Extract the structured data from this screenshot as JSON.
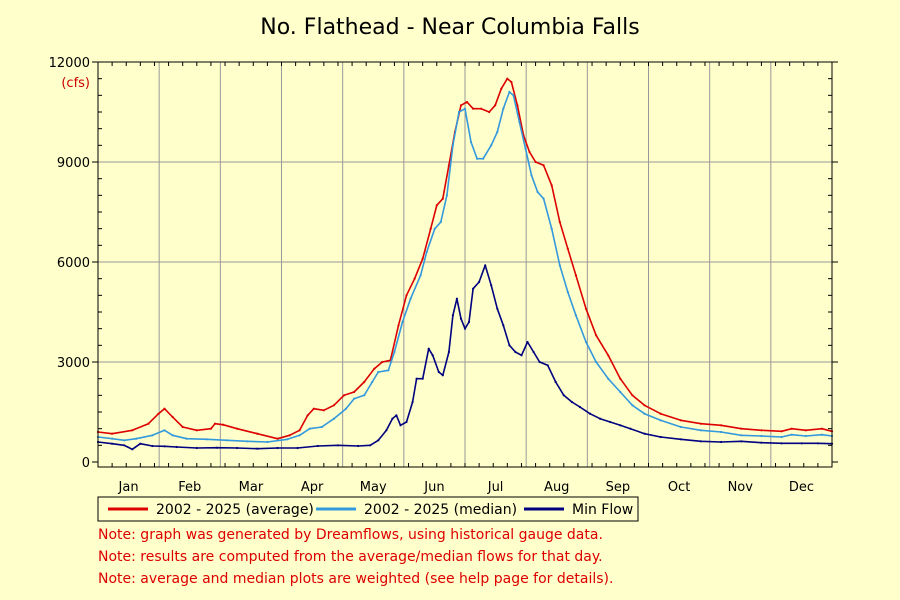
{
  "chart_data": {
    "type": "line",
    "title": "No. Flathead - Near Columbia Falls",
    "unit_label": "(cfs)",
    "ylim": [
      0,
      12000
    ],
    "y_ticks": [
      0,
      3000,
      6000,
      9000,
      12000
    ],
    "months": [
      "Jan",
      "Feb",
      "Mar",
      "Apr",
      "May",
      "Jun",
      "Jul",
      "Aug",
      "Sep",
      "Oct",
      "Nov",
      "Dec"
    ],
    "grid": true,
    "legend_position": "bottom",
    "series": [
      {
        "name": "2002 - 2025 (average)",
        "color": "#dd0000",
        "points": [
          [
            1,
            900
          ],
          [
            8,
            850
          ],
          [
            18,
            950
          ],
          [
            26,
            1150
          ],
          [
            31,
            1450
          ],
          [
            34,
            1600
          ],
          [
            38,
            1350
          ],
          [
            43,
            1050
          ],
          [
            50,
            950
          ],
          [
            57,
            1000
          ],
          [
            59,
            1150
          ],
          [
            63,
            1120
          ],
          [
            70,
            1000
          ],
          [
            80,
            850
          ],
          [
            90,
            700
          ],
          [
            96,
            800
          ],
          [
            101,
            950
          ],
          [
            105,
            1400
          ],
          [
            108,
            1600
          ],
          [
            113,
            1550
          ],
          [
            118,
            1700
          ],
          [
            123,
            2000
          ],
          [
            128,
            2100
          ],
          [
            133,
            2400
          ],
          [
            138,
            2800
          ],
          [
            142,
            3000
          ],
          [
            146,
            3050
          ],
          [
            150,
            4100
          ],
          [
            154,
            5000
          ],
          [
            158,
            5500
          ],
          [
            162,
            6100
          ],
          [
            166,
            7000
          ],
          [
            169,
            7700
          ],
          [
            172,
            7900
          ],
          [
            175,
            8900
          ],
          [
            178,
            9900
          ],
          [
            181,
            10700
          ],
          [
            184,
            10800
          ],
          [
            187,
            10600
          ],
          [
            191,
            10600
          ],
          [
            195,
            10500
          ],
          [
            198,
            10700
          ],
          [
            201,
            11200
          ],
          [
            204,
            11500
          ],
          [
            206,
            11400
          ],
          [
            209,
            10700
          ],
          [
            212,
            9800
          ],
          [
            215,
            9300
          ],
          [
            218,
            9000
          ],
          [
            222,
            8900
          ],
          [
            226,
            8300
          ],
          [
            230,
            7200
          ],
          [
            234,
            6400
          ],
          [
            238,
            5600
          ],
          [
            243,
            4600
          ],
          [
            248,
            3800
          ],
          [
            254,
            3200
          ],
          [
            260,
            2500
          ],
          [
            266,
            2000
          ],
          [
            272,
            1700
          ],
          [
            280,
            1450
          ],
          [
            290,
            1250
          ],
          [
            300,
            1150
          ],
          [
            310,
            1100
          ],
          [
            320,
            1000
          ],
          [
            330,
            950
          ],
          [
            340,
            920
          ],
          [
            345,
            1000
          ],
          [
            352,
            950
          ],
          [
            360,
            1000
          ],
          [
            365,
            920
          ]
        ]
      },
      {
        "name": "2002 - 2025 (median)",
        "color": "#3399dd",
        "points": [
          [
            1,
            750
          ],
          [
            8,
            700
          ],
          [
            14,
            650
          ],
          [
            20,
            700
          ],
          [
            28,
            800
          ],
          [
            34,
            950
          ],
          [
            38,
            800
          ],
          [
            45,
            700
          ],
          [
            55,
            680
          ],
          [
            65,
            650
          ],
          [
            75,
            620
          ],
          [
            85,
            600
          ],
          [
            95,
            680
          ],
          [
            101,
            800
          ],
          [
            106,
            1000
          ],
          [
            112,
            1050
          ],
          [
            118,
            1300
          ],
          [
            124,
            1600
          ],
          [
            128,
            1900
          ],
          [
            133,
            2000
          ],
          [
            137,
            2400
          ],
          [
            140,
            2700
          ],
          [
            145,
            2750
          ],
          [
            148,
            3300
          ],
          [
            152,
            4200
          ],
          [
            156,
            4900
          ],
          [
            161,
            5600
          ],
          [
            164,
            6300
          ],
          [
            168,
            7000
          ],
          [
            171,
            7200
          ],
          [
            174,
            8000
          ],
          [
            177,
            9500
          ],
          [
            180,
            10500
          ],
          [
            183,
            10600
          ],
          [
            186,
            9600
          ],
          [
            189,
            9100
          ],
          [
            192,
            9100
          ],
          [
            196,
            9500
          ],
          [
            199,
            9900
          ],
          [
            202,
            10600
          ],
          [
            205,
            11100
          ],
          [
            207,
            11000
          ],
          [
            210,
            10200
          ],
          [
            213,
            9400
          ],
          [
            216,
            8600
          ],
          [
            219,
            8100
          ],
          [
            222,
            7900
          ],
          [
            226,
            7000
          ],
          [
            230,
            5900
          ],
          [
            234,
            5100
          ],
          [
            238,
            4400
          ],
          [
            243,
            3600
          ],
          [
            248,
            3000
          ],
          [
            254,
            2500
          ],
          [
            260,
            2100
          ],
          [
            266,
            1700
          ],
          [
            272,
            1450
          ],
          [
            280,
            1250
          ],
          [
            290,
            1050
          ],
          [
            300,
            950
          ],
          [
            310,
            900
          ],
          [
            320,
            800
          ],
          [
            330,
            780
          ],
          [
            340,
            750
          ],
          [
            345,
            820
          ],
          [
            352,
            780
          ],
          [
            360,
            820
          ],
          [
            365,
            780
          ]
        ]
      },
      {
        "name": "Min Flow",
        "color": "#000080",
        "points": [
          [
            1,
            600
          ],
          [
            8,
            550
          ],
          [
            14,
            500
          ],
          [
            18,
            380
          ],
          [
            22,
            550
          ],
          [
            28,
            480
          ],
          [
            34,
            470
          ],
          [
            40,
            450
          ],
          [
            50,
            420
          ],
          [
            60,
            430
          ],
          [
            70,
            420
          ],
          [
            80,
            400
          ],
          [
            90,
            420
          ],
          [
            100,
            420
          ],
          [
            110,
            480
          ],
          [
            120,
            500
          ],
          [
            130,
            480
          ],
          [
            136,
            500
          ],
          [
            140,
            650
          ],
          [
            144,
            950
          ],
          [
            147,
            1300
          ],
          [
            149,
            1400
          ],
          [
            151,
            1100
          ],
          [
            154,
            1200
          ],
          [
            157,
            1800
          ],
          [
            159,
            2500
          ],
          [
            162,
            2500
          ],
          [
            165,
            3400
          ],
          [
            167,
            3200
          ],
          [
            170,
            2700
          ],
          [
            172,
            2600
          ],
          [
            175,
            3300
          ],
          [
            177,
            4400
          ],
          [
            179,
            4900
          ],
          [
            181,
            4300
          ],
          [
            183,
            4000
          ],
          [
            185,
            4200
          ],
          [
            187,
            5200
          ],
          [
            190,
            5400
          ],
          [
            193,
            5900
          ],
          [
            196,
            5300
          ],
          [
            199,
            4600
          ],
          [
            202,
            4100
          ],
          [
            205,
            3500
          ],
          [
            208,
            3300
          ],
          [
            211,
            3200
          ],
          [
            214,
            3600
          ],
          [
            217,
            3300
          ],
          [
            220,
            3000
          ],
          [
            224,
            2900
          ],
          [
            228,
            2400
          ],
          [
            232,
            2000
          ],
          [
            236,
            1800
          ],
          [
            240,
            1650
          ],
          [
            245,
            1450
          ],
          [
            250,
            1300
          ],
          [
            255,
            1200
          ],
          [
            260,
            1100
          ],
          [
            265,
            1000
          ],
          [
            272,
            850
          ],
          [
            280,
            750
          ],
          [
            290,
            680
          ],
          [
            300,
            620
          ],
          [
            310,
            600
          ],
          [
            320,
            620
          ],
          [
            330,
            580
          ],
          [
            340,
            560
          ],
          [
            350,
            560
          ],
          [
            358,
            560
          ],
          [
            365,
            550
          ]
        ]
      }
    ]
  },
  "notes": [
    "Note: graph was generated by Dreamflows, using historical gauge data.",
    "Note: results are computed from the average/median flows for that day.",
    "Note: average and median plots are weighted (see help page for details)."
  ]
}
